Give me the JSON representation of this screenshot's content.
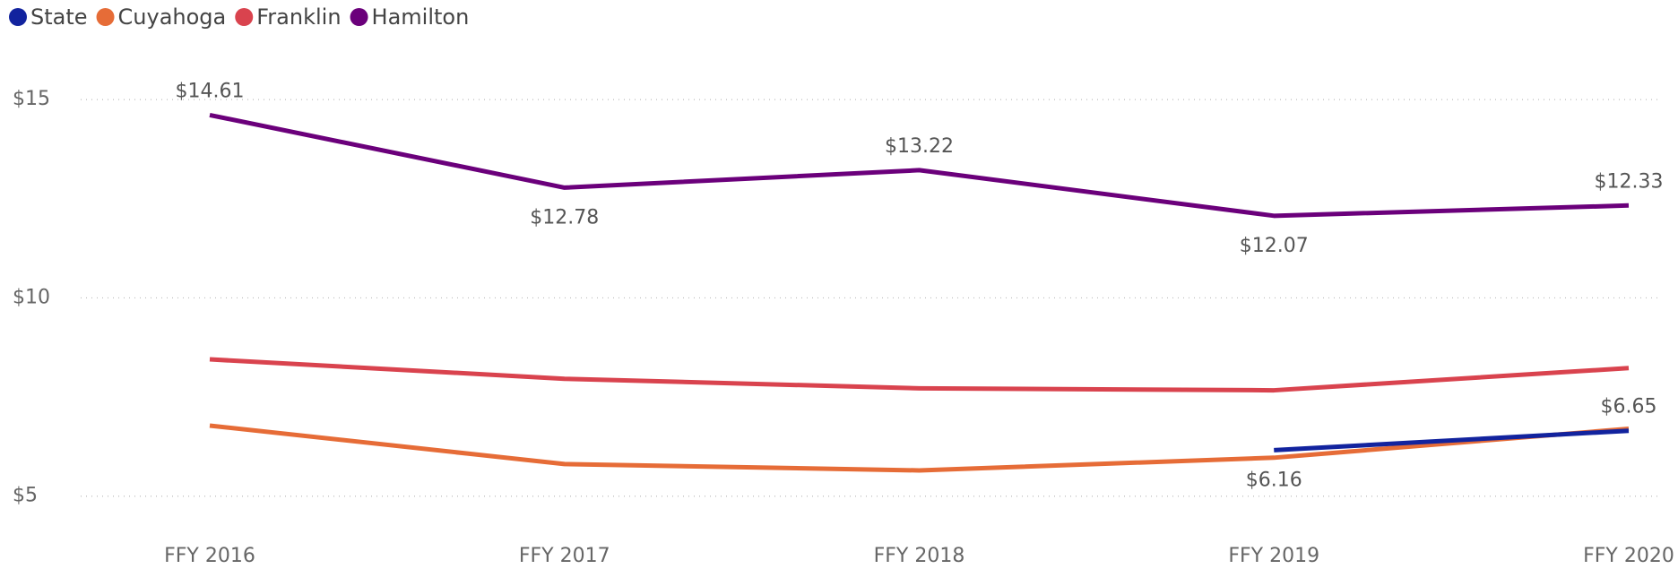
{
  "chart_data": {
    "type": "line",
    "categories": [
      "FFY 2016",
      "FFY 2017",
      "FFY 2018",
      "FFY 2019",
      "FFY 2020"
    ],
    "series": [
      {
        "name": "State",
        "color": "#12239e",
        "values": [
          null,
          null,
          null,
          6.16,
          6.65
        ],
        "value_labels": [
          null,
          null,
          null,
          "$6.16",
          "$6.65"
        ]
      },
      {
        "name": "Cuyahoga",
        "color": "#e66c37",
        "values": [
          6.78,
          5.81,
          5.65,
          5.97,
          6.7
        ]
      },
      {
        "name": "Franklin",
        "color": "#d9434e",
        "values": [
          8.45,
          7.96,
          7.72,
          7.67,
          8.23
        ]
      },
      {
        "name": "Hamilton",
        "color": "#6b007b",
        "values": [
          14.61,
          12.78,
          13.22,
          12.07,
          12.33
        ],
        "value_labels": [
          "$14.61",
          "$12.78",
          "$13.22",
          "$12.07",
          "$12.33"
        ]
      }
    ],
    "ylim": [
      4,
      15.5
    ],
    "yticks": [
      {
        "value": 5,
        "label": "$5"
      },
      {
        "value": 10,
        "label": "$10"
      },
      {
        "value": 15,
        "label": "$15"
      }
    ],
    "grid": true,
    "legend": "top-left"
  }
}
